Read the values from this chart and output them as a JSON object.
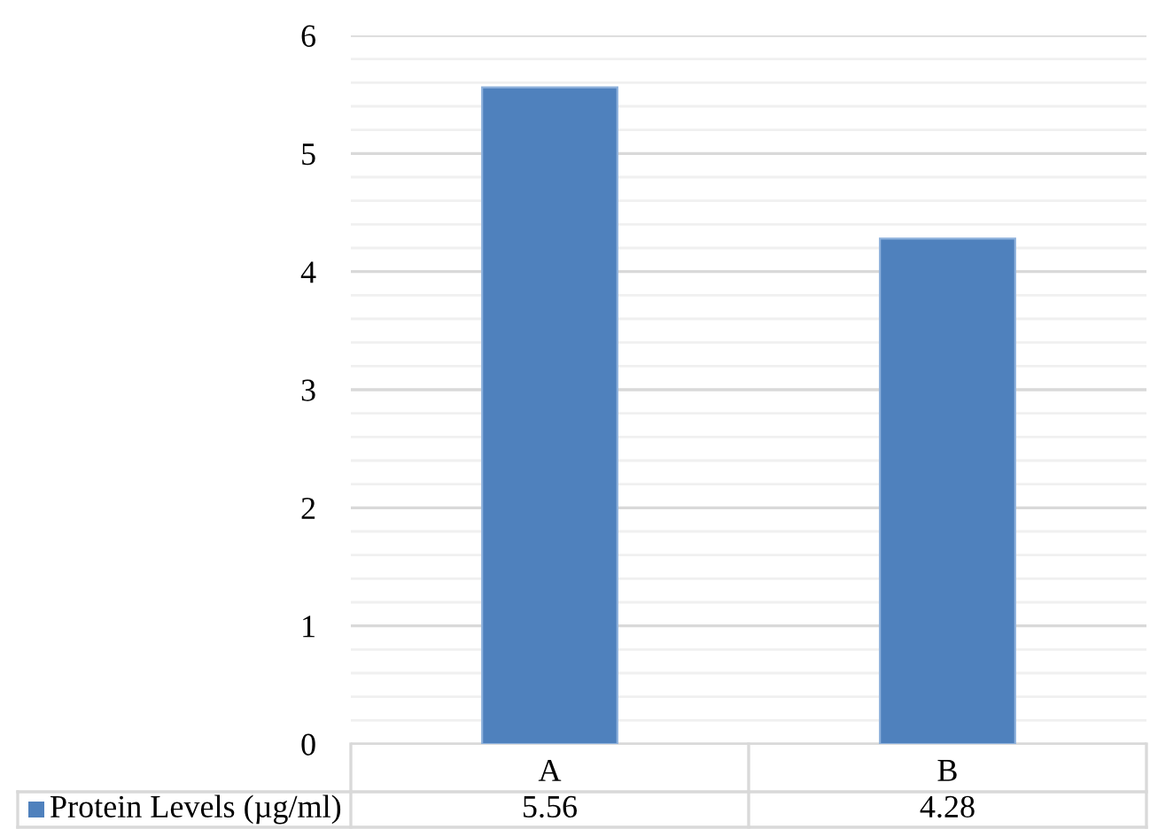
{
  "chart_data": {
    "type": "bar",
    "categories": [
      "A",
      "B"
    ],
    "series": [
      {
        "name": "Protein Levels (µg/ml)",
        "color": "#4f81bd",
        "values": [
          5.56,
          4.28
        ]
      }
    ],
    "ylim": [
      0,
      6
    ],
    "yticks": [
      0,
      1,
      2,
      3,
      4,
      5,
      6
    ],
    "grid": "y",
    "legend": "bottom",
    "data_labels": true
  }
}
